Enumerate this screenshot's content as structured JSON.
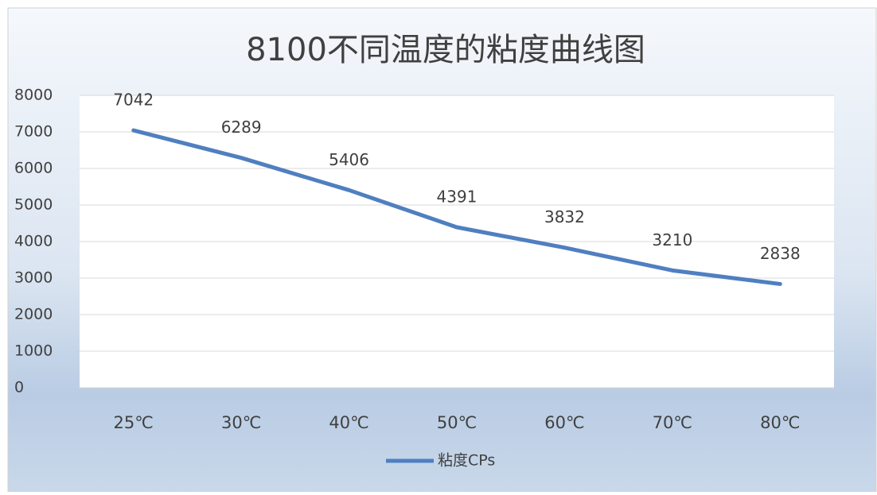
{
  "chart_data": {
    "type": "line",
    "title": "8100不同温度的粘度曲线图",
    "categories": [
      "25℃",
      "30℃",
      "40℃",
      "50℃",
      "60℃",
      "70℃",
      "80℃"
    ],
    "series": [
      {
        "name": "粘度CPs",
        "color": "#4f7fc0",
        "values": [
          7042,
          6289,
          5406,
          4391,
          3832,
          3210,
          2838
        ]
      }
    ],
    "ylim": [
      0,
      8000
    ],
    "yticks": [
      0,
      1000,
      2000,
      3000,
      4000,
      5000,
      6000,
      7000,
      8000
    ],
    "grid": true,
    "legend": "bottom"
  }
}
